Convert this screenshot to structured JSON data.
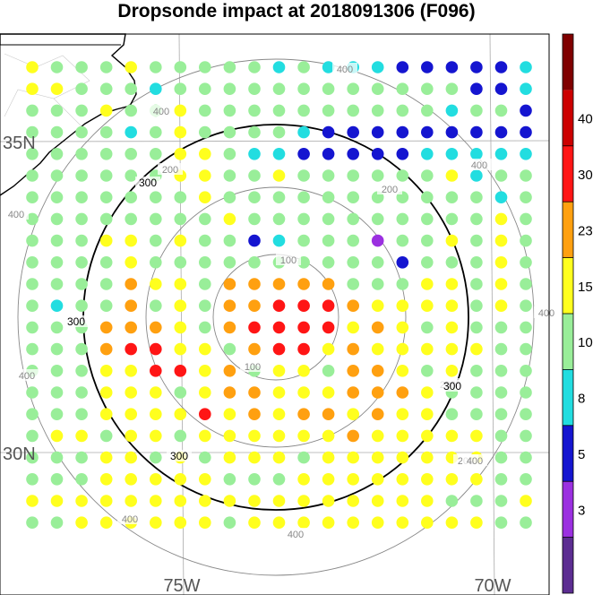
{
  "title": "Dropsonde impact at 2018091306 (F096)",
  "lat_labels": [
    {
      "lat": 35,
      "label": "35N"
    },
    {
      "lat": 30,
      "label": "30N"
    }
  ],
  "lon_labels": [
    {
      "lon": -75,
      "label": "75W"
    },
    {
      "lon": -70,
      "label": "70W"
    }
  ],
  "colorbar": {
    "bounds": [
      0,
      3,
      5,
      8,
      10,
      15,
      23,
      30,
      40,
      50
    ],
    "tick_labels": [
      "3",
      "5",
      "8",
      "10",
      "15",
      "23",
      "30",
      "40"
    ],
    "colors": [
      "#5c2d91",
      "#9b30e0",
      "#1515d0",
      "#22dde0",
      "#99ee99",
      "#ffff1e",
      "#ffa010",
      "#ff1515",
      "#cc0000",
      "#800000"
    ]
  },
  "contours": [
    {
      "label": "100",
      "color": "#888888"
    },
    {
      "label": "200",
      "color": "#888888"
    },
    {
      "label": "300",
      "color": "#000000"
    },
    {
      "label": "400",
      "color": "#888888"
    }
  ],
  "chart_data": {
    "type": "scatter",
    "description_units": "impact value binned to colorbar; grid rows from north (row 0) to south, columns west to east",
    "rows": [
      "YGGGYGGGGGCGCCCBBBBBC",
      "YYGGGCGGGGGGGGGGGGBBC",
      "GGGYGGYGGGGGGGGGGCGGB",
      "GGGGCGYGGGGCBBBBBBBBB",
      "GGGGGGYYGCCBBBBBCCCCC",
      "GGGGGGYYGGYGGGGGGYCGG",
      "GGGGGGGYGGGGGGGGGGGCG",
      "GGGGGGGGYGGGGGGGGGGYG",
      "GGGYYGYGGBCGGGPGGYGYG",
      "GGGGYGGGGGGGGGGBGGGYG",
      "GGGGOYYGOOOOOGGGYYGYG",
      "GCGGOGYGOORRROYYYYGYG",
      "GGGOOOYGORRRRYOYGYGGG",
      "GGGORRYYGORRYOYYYYYGG",
      "GGGYYRRYOGYYGOOYGYGGG",
      "GGGYYYGYOOYYYOOOYGGGG",
      "GGGYYYYRYOYOOYOYYGGGG",
      "GYYGYYGYYYYYYOYYYYYGG",
      "GGGYYGYGYYYGYYYYYYYGG",
      "GGGYYYYYGGGYYYYYYYYGG",
      "YYYYYYYYYYYYYYYYYGGGY",
      "GGYYYYYYGYYYYYYYYYYGG"
    ],
    "legend_codes": {
      "P": "3-5",
      "B": "5-8",
      "C": "8-10",
      "G": "10-15",
      "Y": "15-23",
      "O": "23-30",
      "R": "30-40"
    }
  },
  "colors": {
    "P": "#9b30e0",
    "B": "#1515d0",
    "C": "#22dde0",
    "G": "#99ee99",
    "Y": "#ffff1e",
    "O": "#ffa010",
    "R": "#ff1515"
  }
}
